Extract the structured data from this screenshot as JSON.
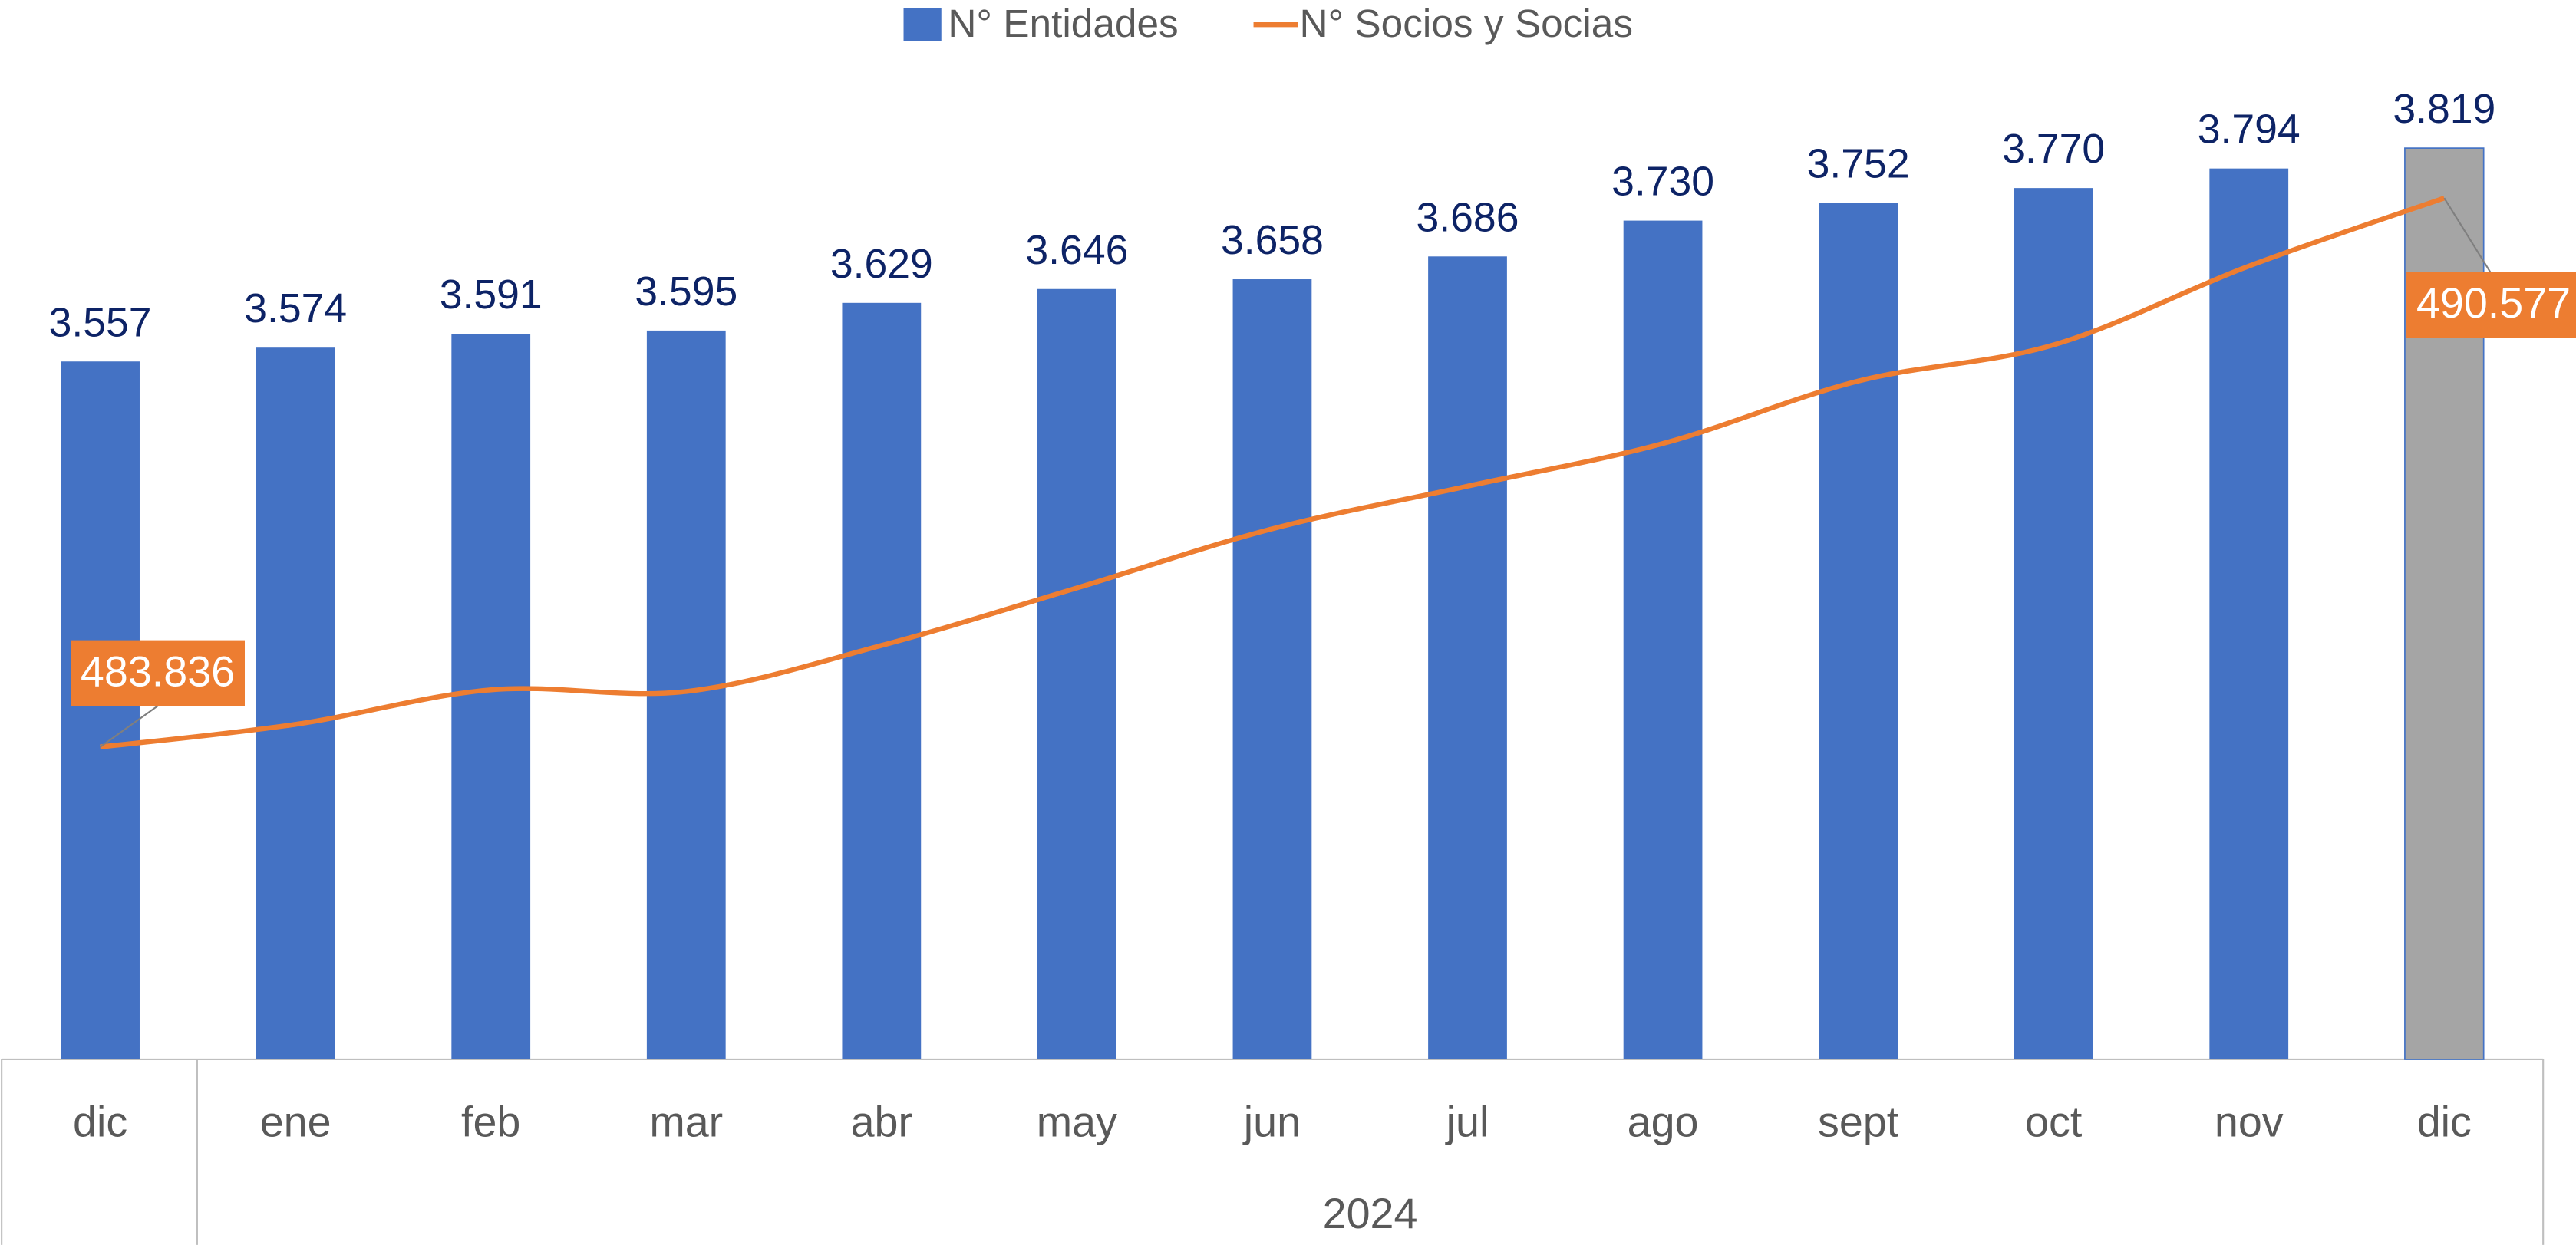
{
  "chart_data": {
    "type": "bar",
    "categories": [
      "dic",
      "ene",
      "feb",
      "mar",
      "abr",
      "may",
      "jun",
      "jul",
      "ago",
      "sept",
      "oct",
      "nov",
      "dic"
    ],
    "group_label": "2024",
    "ylim": [
      2700,
      3900
    ],
    "y2lim": [
      480000,
      492000
    ],
    "series": [
      {
        "name": "N° Entidades",
        "type": "bar",
        "color": "#4472c4",
        "colors": [
          "#4472c4",
          "#4472c4",
          "#4472c4",
          "#4472c4",
          "#4472c4",
          "#4472c4",
          "#4472c4",
          "#4472c4",
          "#4472c4",
          "#4472c4",
          "#4472c4",
          "#4472c4",
          "#a5a5a5"
        ],
        "values": [
          3557,
          3574,
          3591,
          3595,
          3629,
          3646,
          3658,
          3686,
          3730,
          3752,
          3770,
          3794,
          3819
        ],
        "value_labels": [
          "3.557",
          "3.574",
          "3.591",
          "3.595",
          "3.629",
          "3.646",
          "3.658",
          "3.686",
          "3.730",
          "3.752",
          "3.770",
          "3.794",
          "3.819"
        ]
      },
      {
        "name": "N° Socios y Socias",
        "type": "line",
        "axis": "y2",
        "color": "#ed7d31",
        "values": [
          483836,
          484114,
          484538,
          484518,
          485083,
          485789,
          486515,
          487039,
          487563,
          488330,
          488774,
          489742,
          490577
        ],
        "value_labels": [
          "483.836",
          null,
          null,
          null,
          null,
          null,
          null,
          null,
          null,
          null,
          null,
          null,
          "490.577"
        ]
      }
    ]
  }
}
